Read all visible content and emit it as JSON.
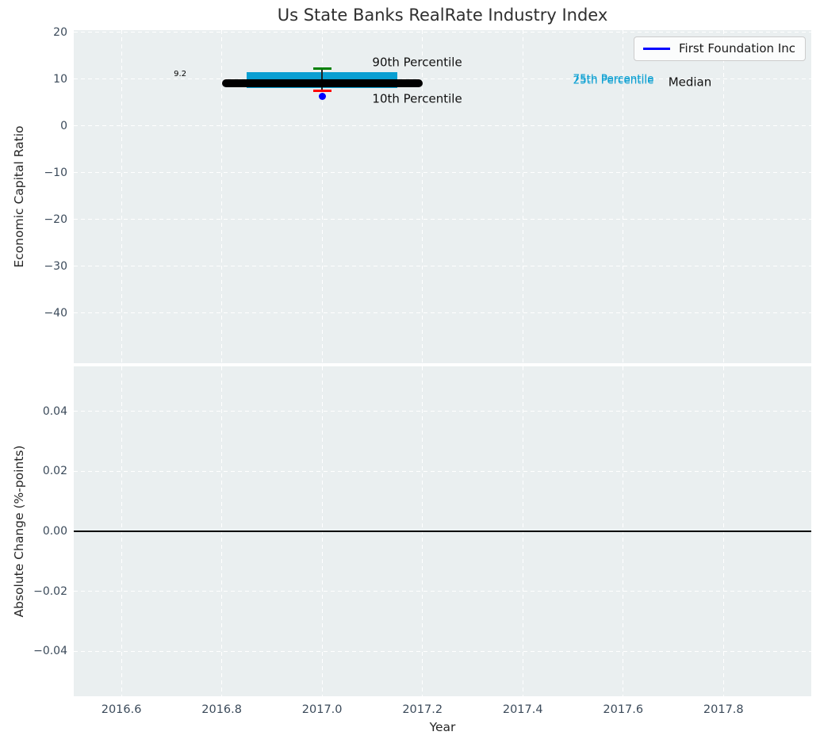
{
  "title": "Us State Banks RealRate Industry Index",
  "legend": {
    "label": "First Foundation Inc",
    "line_color": "#0000ff",
    "position": "upper right"
  },
  "colors": {
    "plot_background": "#eaeff0",
    "grid": "#ffffff",
    "tick_label": "#3b4a5a",
    "axis_label": "#262626",
    "title": "#2f2f2f"
  },
  "chart_data": [
    {
      "type": "boxplot",
      "subplot": "top",
      "title": "Us State Banks RealRate Industry Index",
      "ylabel": "Economic Capital Ratio",
      "grid": true,
      "legend_position": "upper right",
      "xlim": [
        2016.505,
        2017.975
      ],
      "ylim": [
        -50.7,
        20.5
      ],
      "xticks": [
        2016.6,
        2016.8,
        2017.0,
        2017.2,
        2017.4,
        2017.6,
        2017.8
      ],
      "yticks": [
        20,
        10,
        0,
        -10,
        -20,
        -30,
        -40
      ],
      "ytick_labels": [
        "20",
        "10",
        "0",
        "−10",
        "−20",
        "−30",
        "−40"
      ],
      "box": {
        "x": 2017.0,
        "median": 9.2,
        "median_label": "9.2",
        "q3": 11.5,
        "q1": 8.2,
        "p90": 12.3,
        "p10": 7.5,
        "median_line_halfwidth": 0.2,
        "box_halfwidth": 0.15,
        "cap_halfwidth": 0.018,
        "colors": {
          "median_line": "#000000",
          "box": "#0a9fd2",
          "p90_cap": "#008000",
          "p10_cap": "#ff0000",
          "whisker": "#222222"
        }
      },
      "series": [
        {
          "name": "First Foundation Inc",
          "x": [
            2017.0
          ],
          "values": [
            6.3
          ],
          "color": "#0000ff",
          "marker": "circle"
        }
      ],
      "annotations": [
        {
          "text": "9.2",
          "x": 2016.717,
          "y": 11.0,
          "ha": "center",
          "size": 10,
          "color": "#000000"
        },
        {
          "text": "90th Percentile",
          "x": 2017.1,
          "y": 13.5,
          "ha": "left",
          "size": 15,
          "color": "#111111"
        },
        {
          "text": "10th Percentile",
          "x": 2017.1,
          "y": 5.8,
          "ha": "left",
          "size": 15,
          "color": "#111111"
        },
        {
          "text": "75th Percentile",
          "x": 2017.5,
          "y": 9.95,
          "ha": "left",
          "size": 13.5,
          "color": "#0a9fd2"
        },
        {
          "text": "25th Percentile",
          "x": 2017.5,
          "y": 9.7,
          "ha": "left",
          "size": 13.5,
          "color": "#0a9fd2"
        },
        {
          "text": "Median",
          "x": 2017.69,
          "y": 9.3,
          "ha": "left",
          "size": 15,
          "color": "#111111"
        }
      ]
    },
    {
      "type": "line",
      "subplot": "bottom",
      "xlabel": "Year",
      "ylabel": "Absolute Change (%-points)",
      "grid": true,
      "xlim": [
        2016.505,
        2017.975
      ],
      "ylim": [
        -0.055,
        0.055
      ],
      "xticks": [
        2016.6,
        2016.8,
        2017.0,
        2017.2,
        2017.4,
        2017.6,
        2017.8
      ],
      "xtick_labels": [
        "2016.6",
        "2016.8",
        "2017.0",
        "2017.2",
        "2017.4",
        "2017.6",
        "2017.8"
      ],
      "yticks": [
        0.04,
        0.02,
        0.0,
        -0.02,
        -0.04
      ],
      "ytick_labels": [
        "0.04",
        "0.02",
        "0.00",
        "−0.02",
        "−0.04"
      ],
      "zero_line": {
        "y": 0.0,
        "color": "#000000",
        "width": 2
      },
      "series": []
    }
  ]
}
